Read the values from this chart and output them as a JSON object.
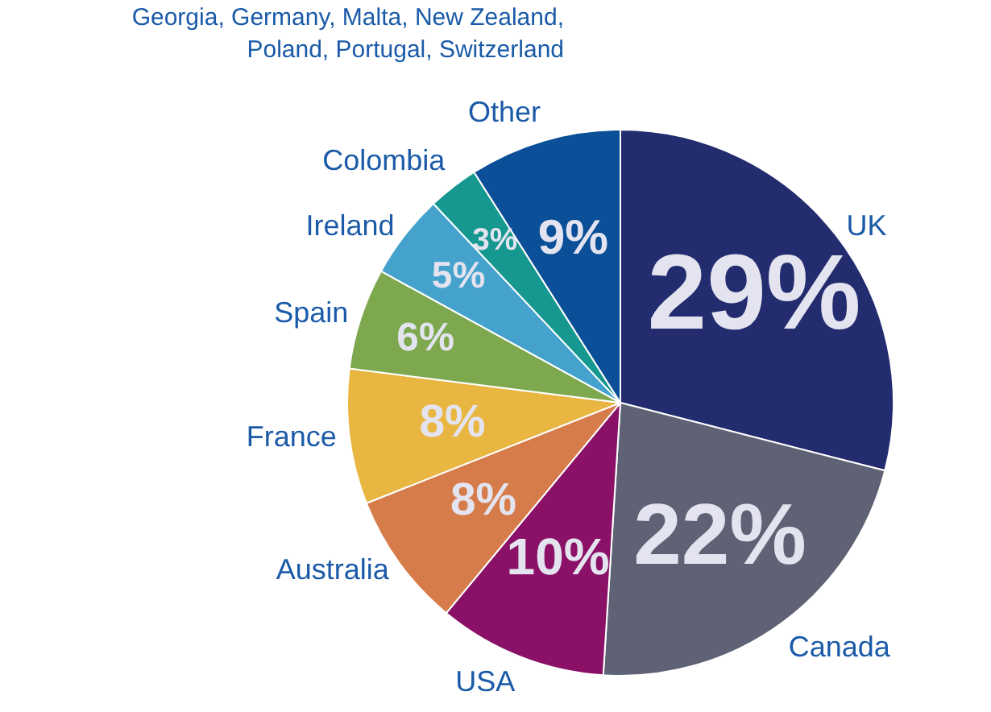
{
  "chart_data": {
    "type": "pie",
    "categories": [
      "UK",
      "Canada",
      "USA",
      "Australia",
      "France",
      "Spain",
      "Ireland",
      "Colombia",
      "Other"
    ],
    "values": [
      29,
      22,
      10,
      8,
      8,
      6,
      5,
      3,
      9
    ],
    "colors": [
      "#232c6e",
      "#5f6274",
      "#8a1167",
      "#d67c4a",
      "#e8b641",
      "#7da84e",
      "#44a2cc",
      "#169890",
      "#0a4f97"
    ],
    "value_labels": [
      "29%",
      "22%",
      "10%",
      "8%",
      "8%",
      "6%",
      "5%",
      "3%",
      "9%"
    ],
    "annotations": [
      {
        "text": "Georgia, Germany, Malta, New Zealand,\nPoland, Portugal, Switzerland",
        "x": "Other"
      }
    ],
    "legend": false
  }
}
